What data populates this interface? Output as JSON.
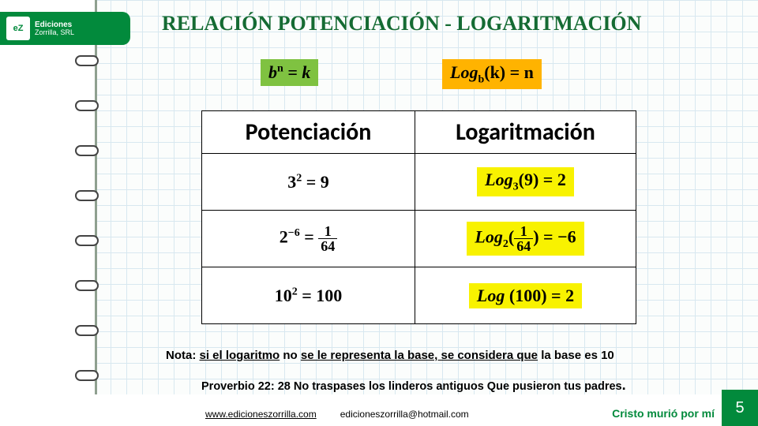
{
  "logo": {
    "brand_top": "Ediciones",
    "brand_bottom": "Zorrilla, SRL",
    "icon_text": "eZ"
  },
  "title": "RELACIÓN  POTENCIACIÓN -  LOGARITMACIÓN",
  "top_formulas": {
    "potencia": "bⁿ = k",
    "log_prefix": "Log",
    "log_rest": "(k) = n",
    "log_sub": "b"
  },
  "table": {
    "headers": {
      "left": "Potenciación",
      "right": "Logaritmación"
    },
    "rows": [
      {
        "left_base": "3",
        "left_exp": "2",
        "left_eq": " = 9",
        "right_pre": "Log",
        "right_sub": "3",
        "right_rest": "(9) = 2"
      },
      {
        "left_base": "2",
        "left_exp": "−6",
        "left_eq_pre": " = ",
        "frac_num": "1",
        "frac_den": "64",
        "right_pre": "Log",
        "right_sub": "2",
        "right_frac_num": "1",
        "right_frac_den": "64",
        "right_rest": " = −6"
      },
      {
        "left_base": "10",
        "left_exp": "2",
        "left_eq": " = 100",
        "right_pre": "Log",
        "right_rest": "   (100) = 2"
      }
    ]
  },
  "note": {
    "pre": "Nota: ",
    "u1": "si el logaritmo",
    "mid": " no ",
    "u2": "se le representa la base, se considera que",
    "post": " la base es 10"
  },
  "proverb": "Proverbio 22: 28 No traspases los linderos antiguos Que pusieron tus padres",
  "footer": {
    "url": "www.edicioneszorrilla.com",
    "email": "edicioneszorrilla@hotmail.com",
    "credit": "Cristo murió por mí",
    "page": "5"
  },
  "colors": {
    "brand_green": "#028a3c",
    "lime": "#7fc241",
    "amber": "#ffb300",
    "yellow": "#f8f200"
  }
}
